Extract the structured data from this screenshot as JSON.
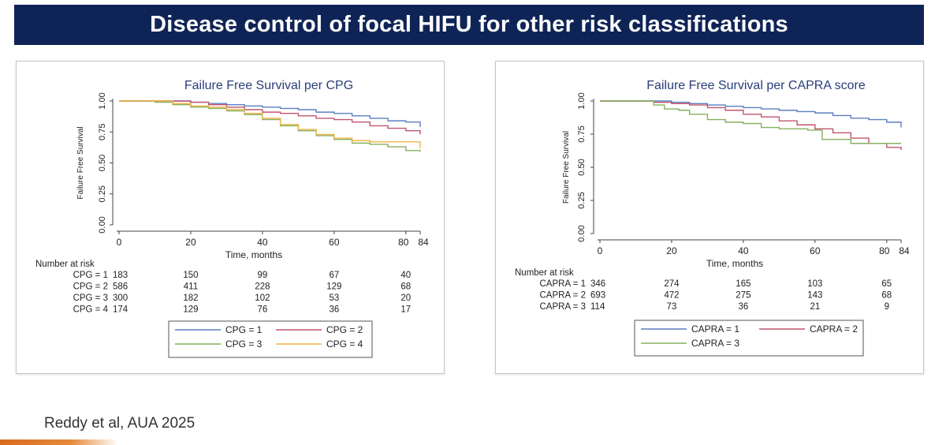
{
  "slide": {
    "title": "Disease control of focal HIFU for other risk classifications",
    "citation": "Reddy et al, AUA 2025",
    "colors": {
      "banner": "#0f2456",
      "accent": "#d96a1e"
    }
  },
  "chart_data": [
    {
      "type": "line",
      "title": "Failure Free Survival per CPG",
      "xlabel": "Time, months",
      "ylabel": "Failure Free Survival",
      "xlim": [
        0,
        84
      ],
      "ylim": [
        0,
        1
      ],
      "xticks": [
        "0",
        "20",
        "40",
        "60",
        "80",
        "84"
      ],
      "xtick_values": [
        0,
        20,
        40,
        60,
        80,
        84
      ],
      "yticks": [
        "0.00",
        "0.25",
        "0.50",
        "0.75",
        "1.00"
      ],
      "ytick_values": [
        0,
        0.25,
        0.5,
        0.75,
        1
      ],
      "grid": false,
      "risk_table": {
        "header": "Number at risk",
        "columns": [
          0,
          20,
          40,
          60,
          80
        ],
        "rows": [
          {
            "label": "CPG = 1",
            "values": [
              "183",
              "150",
              "99",
              "67",
              "40"
            ]
          },
          {
            "label": "CPG = 2",
            "values": [
              "586",
              "411",
              "228",
              "129",
              "68"
            ]
          },
          {
            "label": "CPG = 3",
            "values": [
              "300",
              "182",
              "102",
              "53",
              "20"
            ]
          },
          {
            "label": "CPG = 4",
            "values": [
              "174",
              "129",
              "76",
              "36",
              "17"
            ]
          }
        ]
      },
      "legend_placement": "bottom",
      "series": [
        {
          "name": "CPG = 1",
          "color": "#5b7fc0",
          "x": [
            0,
            10,
            20,
            25,
            30,
            35,
            40,
            45,
            50,
            55,
            60,
            65,
            70,
            75,
            80,
            84
          ],
          "y": [
            1.0,
            1.0,
            0.99,
            0.98,
            0.97,
            0.96,
            0.95,
            0.94,
            0.93,
            0.91,
            0.9,
            0.88,
            0.86,
            0.84,
            0.83,
            0.79
          ]
        },
        {
          "name": "CPG = 2",
          "color": "#c0566e",
          "x": [
            0,
            10,
            20,
            25,
            30,
            35,
            40,
            45,
            50,
            55,
            60,
            65,
            70,
            75,
            80,
            84
          ],
          "y": [
            1.0,
            1.0,
            0.99,
            0.97,
            0.95,
            0.93,
            0.91,
            0.9,
            0.88,
            0.86,
            0.85,
            0.83,
            0.8,
            0.78,
            0.76,
            0.73
          ]
        },
        {
          "name": "CPG = 3",
          "color": "#86b05e",
          "x": [
            0,
            10,
            15,
            20,
            25,
            30,
            35,
            40,
            45,
            50,
            55,
            60,
            65,
            70,
            75,
            80,
            84
          ],
          "y": [
            1.0,
            0.99,
            0.97,
            0.95,
            0.94,
            0.92,
            0.89,
            0.85,
            0.8,
            0.76,
            0.72,
            0.69,
            0.66,
            0.65,
            0.63,
            0.6,
            0.59
          ]
        },
        {
          "name": "CPG = 4",
          "color": "#f0b448",
          "x": [
            0,
            10,
            15,
            20,
            25,
            30,
            35,
            40,
            45,
            50,
            55,
            60,
            65,
            70,
            75,
            80,
            84
          ],
          "y": [
            1.0,
            1.0,
            0.98,
            0.96,
            0.95,
            0.93,
            0.9,
            0.86,
            0.81,
            0.77,
            0.73,
            0.7,
            0.68,
            0.67,
            0.67,
            0.67,
            0.62
          ]
        }
      ]
    },
    {
      "type": "line",
      "title": "Failure Free Survival per CAPRA score",
      "xlabel": "Time, months",
      "ylabel": "Failure Free Survival",
      "xlim": [
        0,
        84
      ],
      "ylim": [
        0,
        1
      ],
      "xticks": [
        "0",
        "20",
        "40",
        "60",
        "80",
        "84"
      ],
      "xtick_values": [
        0,
        20,
        40,
        60,
        80,
        84
      ],
      "yticks": [
        "0.00",
        "0.25",
        "0.50",
        "0.75",
        "1.00"
      ],
      "ytick_values": [
        0,
        0.25,
        0.5,
        0.75,
        1
      ],
      "grid": false,
      "risk_table": {
        "header": "Number at risk",
        "columns": [
          0,
          20,
          40,
          60,
          80
        ],
        "rows": [
          {
            "label": "CAPRA = 1",
            "values": [
              "346",
              "274",
              "165",
              "103",
              "65"
            ]
          },
          {
            "label": "CAPRA = 2",
            "values": [
              "693",
              "472",
              "275",
              "143",
              "68"
            ]
          },
          {
            "label": "CAPRA = 3",
            "values": [
              "114",
              "73",
              "36",
              "21",
              "9"
            ]
          }
        ]
      },
      "legend_placement": "bottom",
      "series": [
        {
          "name": "CAPRA = 1",
          "color": "#5b7fc0",
          "x": [
            0,
            10,
            20,
            25,
            30,
            35,
            40,
            45,
            50,
            55,
            60,
            65,
            70,
            75,
            80,
            84
          ],
          "y": [
            1.0,
            1.0,
            0.99,
            0.98,
            0.97,
            0.96,
            0.95,
            0.94,
            0.93,
            0.92,
            0.91,
            0.89,
            0.87,
            0.86,
            0.84,
            0.8
          ]
        },
        {
          "name": "CAPRA = 2",
          "color": "#c0566e",
          "x": [
            0,
            10,
            15,
            20,
            25,
            30,
            35,
            40,
            45,
            50,
            55,
            60,
            65,
            70,
            75,
            80,
            84
          ],
          "y": [
            1.0,
            1.0,
            0.99,
            0.98,
            0.97,
            0.95,
            0.93,
            0.9,
            0.88,
            0.85,
            0.82,
            0.79,
            0.76,
            0.72,
            0.68,
            0.65,
            0.63
          ]
        },
        {
          "name": "CAPRA = 3",
          "color": "#86b05e",
          "x": [
            0,
            10,
            15,
            18,
            22,
            25,
            30,
            35,
            40,
            45,
            50,
            55,
            58,
            62,
            65,
            70,
            75,
            80,
            84
          ],
          "y": [
            1.0,
            1.0,
            0.97,
            0.94,
            0.93,
            0.9,
            0.86,
            0.84,
            0.83,
            0.8,
            0.79,
            0.79,
            0.78,
            0.71,
            0.71,
            0.68,
            0.68,
            0.68,
            0.68
          ]
        }
      ]
    }
  ]
}
